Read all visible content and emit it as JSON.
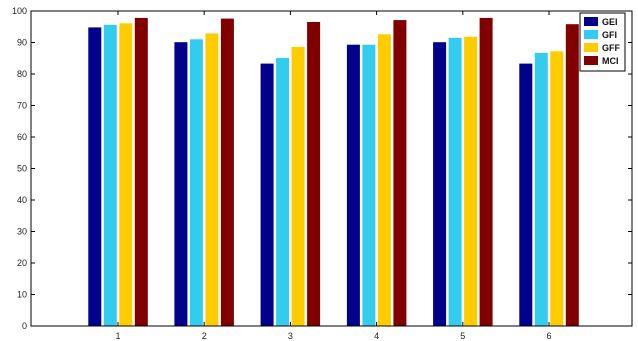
{
  "chart_data": {
    "type": "bar",
    "categories": [
      "1",
      "2",
      "3",
      "4",
      "5",
      "6"
    ],
    "series": [
      {
        "name": "GEI",
        "color": "#00008b",
        "values": [
          94.8,
          90.1,
          83.3,
          89.3,
          90.1,
          83.3
        ]
      },
      {
        "name": "GFI",
        "color": "#33ccee",
        "values": [
          95.6,
          91.0,
          85.1,
          89.3,
          91.5,
          86.7
        ]
      },
      {
        "name": "GFF",
        "color": "#ffcc00",
        "values": [
          96.1,
          92.9,
          88.6,
          92.6,
          91.8,
          87.2
        ]
      },
      {
        "name": "MCI",
        "color": "#800000",
        "values": [
          97.8,
          97.6,
          96.5,
          97.1,
          97.8,
          95.8
        ]
      }
    ],
    "ylim": [
      0,
      100
    ],
    "yticks": [
      0,
      10,
      20,
      30,
      40,
      50,
      60,
      70,
      80,
      90,
      100
    ],
    "legend_position": "top-right",
    "grid": false
  }
}
